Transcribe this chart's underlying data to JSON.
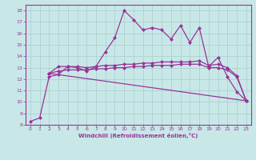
{
  "xlabel": "Windchill (Refroidissement éolien,°C)",
  "background_color": "#c8e8e8",
  "line_color": "#993399",
  "xlim": [
    -0.5,
    23.5
  ],
  "ylim": [
    8,
    18.5
  ],
  "yticks": [
    8,
    9,
    10,
    11,
    12,
    13,
    14,
    15,
    16,
    17,
    18
  ],
  "xticks": [
    0,
    1,
    2,
    3,
    4,
    5,
    6,
    7,
    8,
    9,
    10,
    11,
    12,
    13,
    14,
    15,
    16,
    17,
    18,
    19,
    20,
    21,
    22,
    23
  ],
  "line1_x": [
    0,
    1,
    2,
    3,
    4,
    5,
    6,
    7,
    8,
    9,
    10,
    11,
    12,
    13,
    14,
    15,
    16,
    17,
    18,
    19,
    20,
    21,
    22,
    23
  ],
  "line1_y": [
    8.3,
    8.6,
    12.2,
    12.4,
    13.1,
    13.0,
    12.7,
    13.1,
    14.4,
    15.6,
    18.0,
    17.2,
    16.3,
    16.5,
    16.3,
    15.5,
    16.7,
    15.2,
    16.5,
    13.1,
    13.9,
    12.2,
    10.9,
    10.1
  ],
  "line2_x": [
    2,
    3,
    4,
    5,
    6,
    7,
    8,
    9,
    10,
    11,
    12,
    13,
    14,
    15,
    16,
    17,
    18,
    19,
    20,
    21,
    22,
    23
  ],
  "line2_y": [
    12.5,
    13.1,
    13.1,
    13.1,
    13.0,
    13.1,
    13.2,
    13.2,
    13.3,
    13.3,
    13.4,
    13.4,
    13.5,
    13.5,
    13.5,
    13.5,
    13.6,
    13.2,
    13.3,
    13.0,
    12.3,
    10.1
  ],
  "line3_x": [
    2,
    3,
    4,
    5,
    6,
    7,
    8,
    9,
    10,
    11,
    12,
    13,
    14,
    15,
    16,
    17,
    18,
    19,
    20,
    21,
    22,
    23
  ],
  "line3_y": [
    12.5,
    12.7,
    12.8,
    12.8,
    12.8,
    12.9,
    12.9,
    13.0,
    13.0,
    13.1,
    13.1,
    13.2,
    13.2,
    13.2,
    13.3,
    13.3,
    13.3,
    13.0,
    13.0,
    12.8,
    12.2,
    10.1
  ],
  "line4_x": [
    2,
    23
  ],
  "line4_y": [
    12.5,
    10.1
  ]
}
